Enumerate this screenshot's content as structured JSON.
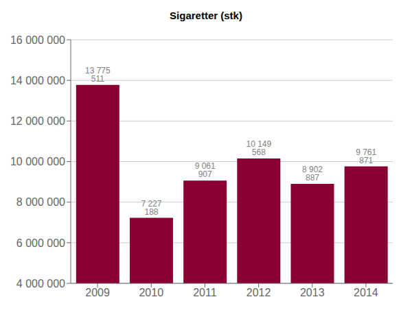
{
  "chart_data": {
    "type": "bar",
    "title": "Sigaretter (stk)",
    "categories": [
      "2009",
      "2010",
      "2011",
      "2012",
      "2013",
      "2014"
    ],
    "values": [
      13775511,
      7227188,
      9061907,
      10149568,
      8902887,
      9761871
    ],
    "value_labels": [
      "13 775 511",
      "7 227 188",
      "9 061 907",
      "10 149 568",
      "8 902 887",
      "9 761 871"
    ],
    "data_labels": true,
    "color": "#8B0033",
    "ylim": [
      4000000,
      16000000
    ],
    "yticks": [
      {
        "value": 4000000,
        "label": "4 000 000"
      },
      {
        "value": 6000000,
        "label": "6 000 000"
      },
      {
        "value": 8000000,
        "label": "8 000 000"
      },
      {
        "value": 10000000,
        "label": "10 000 000"
      },
      {
        "value": 12000000,
        "label": "12 000 000"
      },
      {
        "value": 14000000,
        "label": "14 000 000"
      },
      {
        "value": 16000000,
        "label": "16 000 000"
      }
    ],
    "grid": true
  }
}
